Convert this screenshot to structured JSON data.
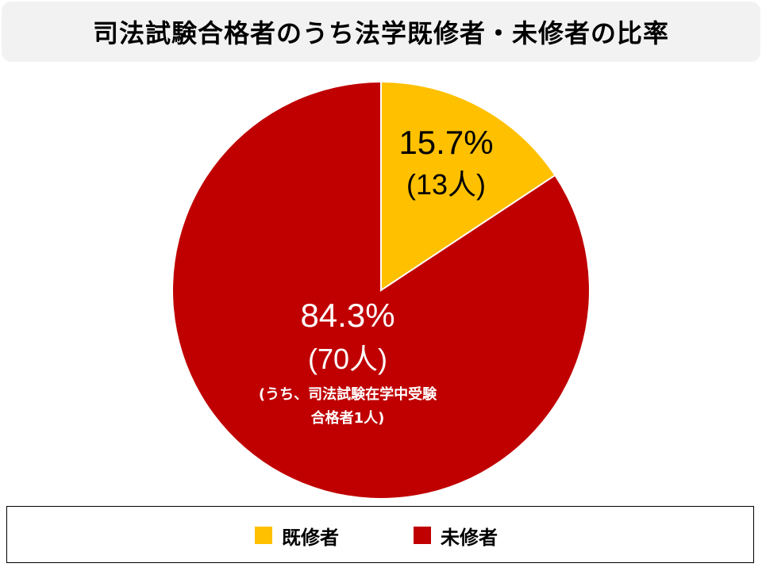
{
  "chart_data": {
    "type": "pie",
    "title": "司法試験合格者のうち法学既修者・未修者の比率",
    "series": [
      {
        "name": "既修者",
        "percent": 15.7,
        "count": 13,
        "color": "#ffc000",
        "label_percent": "15.7%",
        "label_count": "(13人)"
      },
      {
        "name": "未修者",
        "percent": 84.3,
        "count": 70,
        "color": "#c00000",
        "label_percent": "84.3%",
        "label_count": "(70人)",
        "note_line1": "(うち、司法試験在学中受験",
        "note_line2": "合格者1人)"
      }
    ],
    "legend_position": "bottom"
  }
}
